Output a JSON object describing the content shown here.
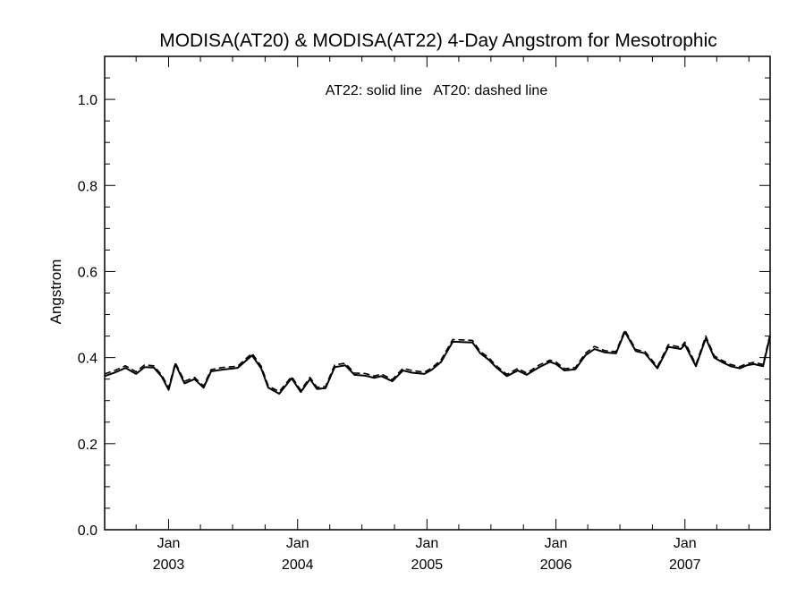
{
  "chart_data": {
    "type": "line",
    "title": "MODISA(AT20) & MODISA(AT22) 4-Day Angstrom for Mesotrophic",
    "annotation": "AT22: solid line   AT20: dashed line",
    "xlabel": "",
    "ylabel": "Angstrom",
    "ylim": [
      0.0,
      1.1
    ],
    "xlim": [
      "2002-07-04",
      "2007-08-30"
    ],
    "y_ticks": [
      {
        "value": 0.0,
        "label": "0.0"
      },
      {
        "value": 0.2,
        "label": "0.2"
      },
      {
        "value": 0.4,
        "label": "0.4"
      },
      {
        "value": 0.6,
        "label": "0.6"
      },
      {
        "value": 0.8,
        "label": "0.8"
      },
      {
        "value": 1.0,
        "label": "1.0"
      }
    ],
    "x_ticks": [
      {
        "date": "2003-01-01",
        "month": "Jan",
        "year": "2003"
      },
      {
        "date": "2004-01-01",
        "month": "Jan",
        "year": "2004"
      },
      {
        "date": "2005-01-01",
        "month": "Jan",
        "year": "2005"
      },
      {
        "date": "2006-01-01",
        "month": "Jan",
        "year": "2006"
      },
      {
        "date": "2007-01-01",
        "month": "Jan",
        "year": "2007"
      }
    ],
    "grid": false,
    "series": [
      {
        "name": "AT22",
        "style": "solid",
        "color": "#000000",
        "x": [
          "2002-07-04",
          "2002-08-01",
          "2002-09-01",
          "2002-10-01",
          "2002-10-25",
          "2002-11-20",
          "2002-12-13",
          "2003-01-01",
          "2003-01-20",
          "2003-02-15",
          "2003-03-15",
          "2003-04-10",
          "2003-05-01",
          "2003-06-01",
          "2003-07-15",
          "2003-08-25",
          "2003-09-20",
          "2003-10-10",
          "2003-11-10",
          "2003-12-15",
          "2004-01-10",
          "2004-02-05",
          "2004-02-25",
          "2004-03-20",
          "2004-04-15",
          "2004-05-15",
          "2004-06-10",
          "2004-07-10",
          "2004-08-05",
          "2004-08-25",
          "2004-09-25",
          "2004-10-25",
          "2004-11-20",
          "2004-12-25",
          "2005-01-15",
          "2005-02-10",
          "2005-03-15",
          "2005-04-15",
          "2005-05-10",
          "2005-06-01",
          "2005-06-25",
          "2005-07-15",
          "2005-08-15",
          "2005-09-15",
          "2005-10-10",
          "2005-11-15",
          "2005-12-15",
          "2006-01-01",
          "2006-01-25",
          "2006-02-25",
          "2006-03-25",
          "2006-04-20",
          "2006-05-20",
          "2006-06-20",
          "2006-07-15",
          "2006-08-15",
          "2006-09-10",
          "2006-10-15",
          "2006-11-15",
          "2006-12-20",
          "2007-01-01",
          "2007-02-01",
          "2007-03-01",
          "2007-03-25",
          "2007-04-15",
          "2007-05-10",
          "2007-06-05",
          "2007-06-25",
          "2007-07-15",
          "2007-08-10",
          "2007-08-30"
        ],
        "values": [
          0.357,
          0.365,
          0.376,
          0.362,
          0.378,
          0.377,
          0.355,
          0.325,
          0.385,
          0.34,
          0.35,
          0.33,
          0.368,
          0.372,
          0.376,
          0.405,
          0.375,
          0.33,
          0.316,
          0.352,
          0.32,
          0.35,
          0.327,
          0.329,
          0.378,
          0.382,
          0.36,
          0.358,
          0.353,
          0.357,
          0.345,
          0.37,
          0.365,
          0.362,
          0.372,
          0.39,
          0.437,
          0.436,
          0.435,
          0.41,
          0.395,
          0.378,
          0.357,
          0.37,
          0.36,
          0.378,
          0.39,
          0.385,
          0.37,
          0.373,
          0.405,
          0.42,
          0.412,
          0.41,
          0.46,
          0.415,
          0.41,
          0.375,
          0.425,
          0.42,
          0.43,
          0.38,
          0.445,
          0.4,
          0.39,
          0.38,
          0.375,
          0.382,
          0.385,
          0.38,
          0.45
        ]
      },
      {
        "name": "AT20",
        "style": "dashed",
        "color": "#000000",
        "x": [
          "2002-07-04",
          "2002-08-01",
          "2002-09-01",
          "2002-10-01",
          "2002-10-25",
          "2002-11-20",
          "2002-12-13",
          "2003-01-01",
          "2003-01-20",
          "2003-02-15",
          "2003-03-15",
          "2003-04-10",
          "2003-05-01",
          "2003-06-01",
          "2003-07-15",
          "2003-08-25",
          "2003-09-20",
          "2003-10-10",
          "2003-11-10",
          "2003-12-15",
          "2004-01-10",
          "2004-02-05",
          "2004-02-25",
          "2004-03-20",
          "2004-04-15",
          "2004-05-15",
          "2004-06-10",
          "2004-07-10",
          "2004-08-05",
          "2004-08-25",
          "2004-09-25",
          "2004-10-25",
          "2004-11-20",
          "2004-12-25",
          "2005-01-15",
          "2005-02-10",
          "2005-03-15",
          "2005-04-15",
          "2005-05-10",
          "2005-06-01",
          "2005-06-25",
          "2005-07-15",
          "2005-08-15",
          "2005-09-15",
          "2005-10-10",
          "2005-11-15",
          "2005-12-15",
          "2006-01-01",
          "2006-01-25",
          "2006-02-25",
          "2006-03-25",
          "2006-04-20",
          "2006-05-20",
          "2006-06-20",
          "2006-07-15",
          "2006-08-15",
          "2006-09-10",
          "2006-10-15",
          "2006-11-15",
          "2006-12-20",
          "2007-01-01",
          "2007-02-01",
          "2007-03-01",
          "2007-03-25",
          "2007-04-15",
          "2007-05-10",
          "2007-06-05",
          "2007-06-25",
          "2007-07-15",
          "2007-08-10",
          "2007-08-30"
        ],
        "values": [
          0.362,
          0.37,
          0.381,
          0.367,
          0.383,
          0.381,
          0.359,
          0.33,
          0.388,
          0.345,
          0.354,
          0.334,
          0.372,
          0.377,
          0.38,
          0.41,
          0.38,
          0.334,
          0.321,
          0.356,
          0.324,
          0.354,
          0.331,
          0.333,
          0.383,
          0.387,
          0.364,
          0.363,
          0.357,
          0.362,
          0.349,
          0.375,
          0.37,
          0.366,
          0.376,
          0.395,
          0.442,
          0.441,
          0.44,
          0.414,
          0.4,
          0.382,
          0.361,
          0.375,
          0.364,
          0.383,
          0.394,
          0.39,
          0.374,
          0.377,
          0.41,
          0.426,
          0.416,
          0.414,
          0.464,
          0.419,
          0.414,
          0.379,
          0.43,
          0.424,
          0.436,
          0.384,
          0.45,
          0.404,
          0.394,
          0.384,
          0.379,
          0.386,
          0.389,
          0.384,
          0.455
        ]
      }
    ]
  }
}
